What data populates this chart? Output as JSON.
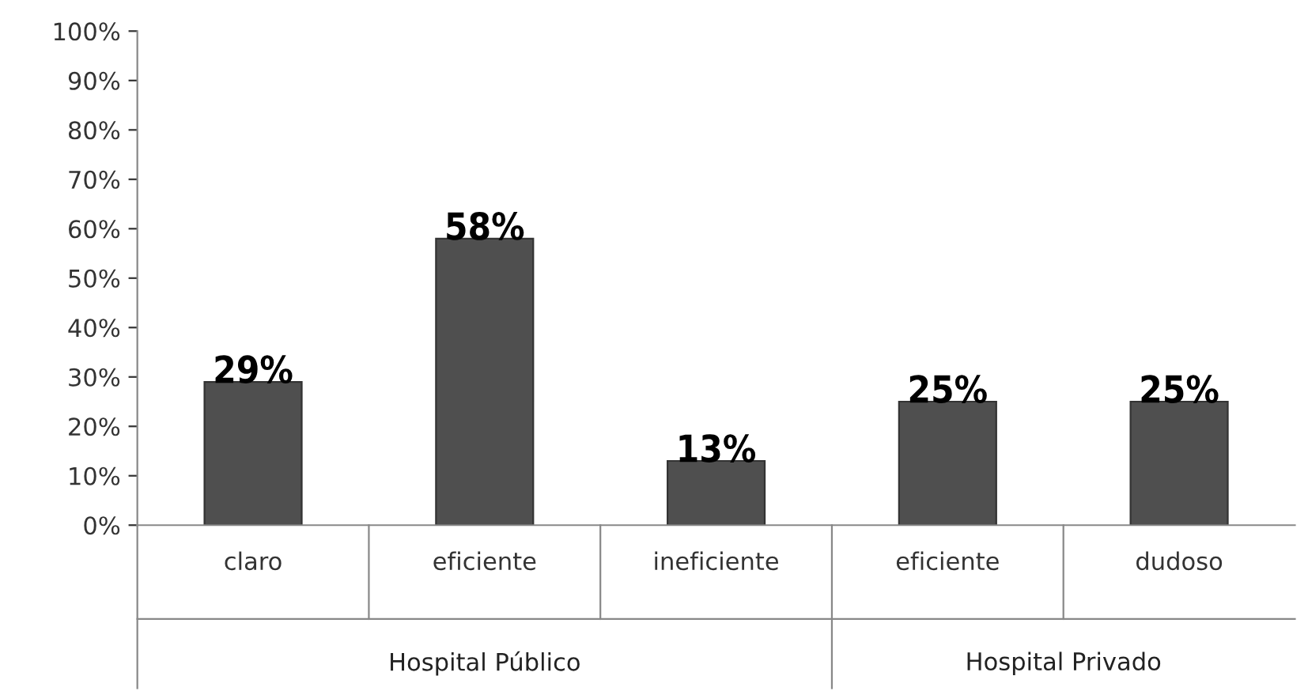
{
  "chart_data": {
    "type": "bar",
    "categories": [
      "claro",
      "eficiente",
      "ineficiente",
      "eficiente",
      "dudoso"
    ],
    "values": [
      29,
      58,
      13,
      25,
      25
    ],
    "value_labels": [
      "29%",
      "58%",
      "13%",
      "25%",
      "25%"
    ],
    "color": "#4f4f4f",
    "ylim": [
      0,
      100
    ],
    "yticks": [
      {
        "value": 0,
        "label": "0%"
      },
      {
        "value": 10,
        "label": "10%"
      },
      {
        "value": 20,
        "label": "20%"
      },
      {
        "value": 30,
        "label": "30%"
      },
      {
        "value": 40,
        "label": "40%"
      },
      {
        "value": 50,
        "label": "50%"
      },
      {
        "value": 60,
        "label": "60%"
      },
      {
        "value": 70,
        "label": "70%"
      },
      {
        "value": 80,
        "label": "80%"
      },
      {
        "value": 90,
        "label": "90%"
      },
      {
        "value": 100,
        "label": "100%"
      }
    ],
    "annotations": [
      "Hospital Público",
      "Hospital Privado"
    ],
    "grid": false
  }
}
